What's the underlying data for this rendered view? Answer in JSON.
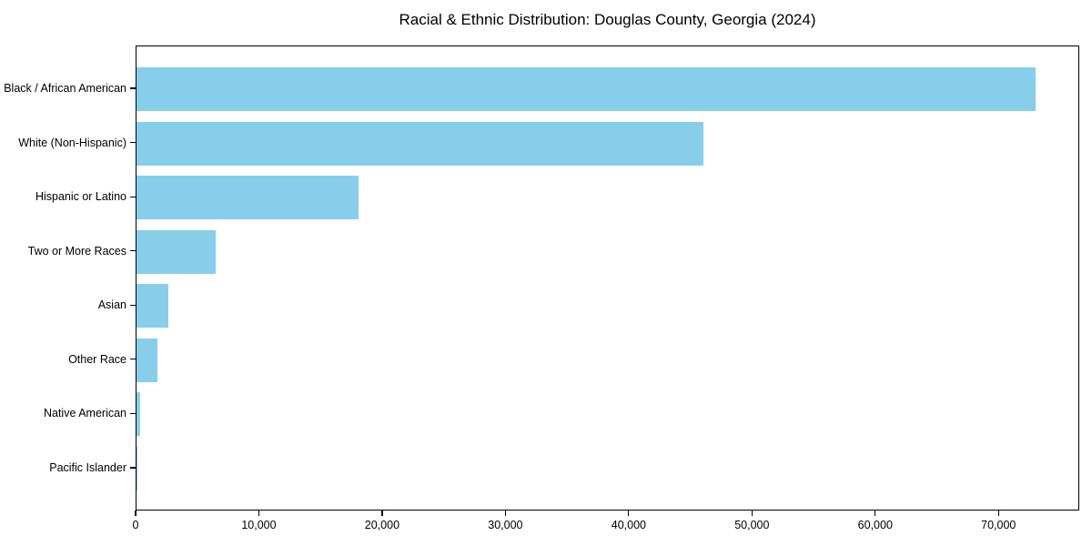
{
  "chart_data": {
    "type": "bar",
    "orientation": "horizontal",
    "title": "Racial & Ethnic Distribution: Douglas County, Georgia (2024)",
    "categories": [
      "Black / African American",
      "White (Non-Hispanic)",
      "Hispanic or Latino",
      "Two or More Races",
      "Asian",
      "Other Race",
      "Native American",
      "Pacific Islander"
    ],
    "values": [
      72900,
      46000,
      18000,
      6400,
      2600,
      1700,
      300,
      100
    ],
    "xlabel": "",
    "ylabel": "",
    "xlim": [
      0,
      76550
    ],
    "x_ticks": [
      0,
      10000,
      20000,
      30000,
      40000,
      50000,
      60000,
      70000
    ],
    "x_tick_labels": [
      "0",
      "10,000",
      "20,000",
      "30,000",
      "40,000",
      "50,000",
      "60,000",
      "70,000"
    ],
    "bar_color": "#87ceeb",
    "axis_color": "#000000",
    "text_color": "#000000",
    "background_color": "#ffffff",
    "grid": false,
    "legend": null
  }
}
